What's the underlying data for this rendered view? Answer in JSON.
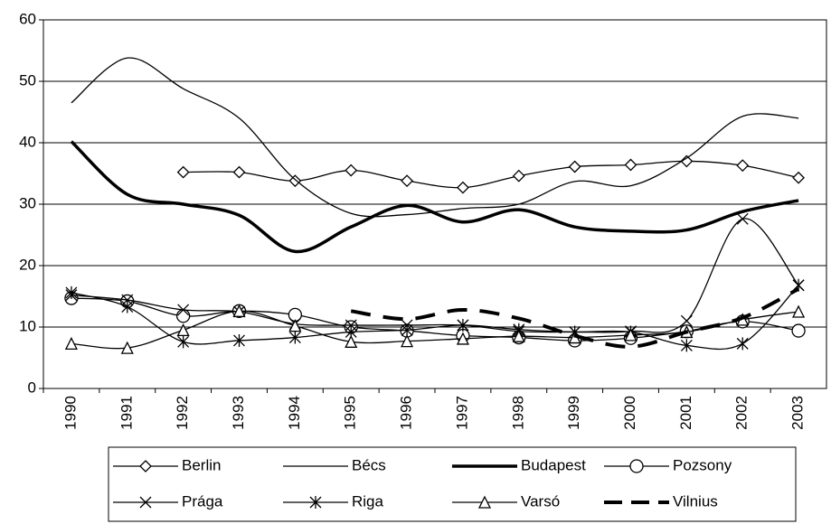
{
  "chart_data": {
    "type": "line",
    "categories": [
      "1990",
      "1991",
      "1992",
      "1993",
      "1994",
      "1995",
      "1996",
      "1997",
      "1998",
      "1999",
      "2000",
      "2001",
      "2002",
      "2003"
    ],
    "ylim": [
      0,
      60
    ],
    "yticks": [
      0,
      10,
      20,
      30,
      40,
      50,
      60
    ],
    "grid": true,
    "series": [
      {
        "name": "Berlin",
        "color": "#000",
        "marker": "diamond",
        "line_width": 1.3,
        "values": [
          null,
          null,
          35.2,
          35.2,
          33.8,
          35.5,
          33.8,
          32.7,
          34.6,
          36.1,
          36.4,
          37,
          36.3,
          34.3
        ]
      },
      {
        "name": "Bécs",
        "color": "#000",
        "marker": "none",
        "line_width": 1.3,
        "values": [
          46.5,
          53.8,
          48.8,
          44,
          34,
          28.5,
          28.3,
          29.3,
          30,
          33.7,
          33,
          37.5,
          44.3,
          44
        ]
      },
      {
        "name": "Budapest",
        "color": "#000",
        "marker": "none",
        "line_width": 3.5,
        "values": [
          40.2,
          31.6,
          30,
          28.2,
          22.3,
          26.3,
          29.8,
          27.1,
          29.1,
          26.3,
          25.6,
          25.8,
          28.8,
          30.6
        ]
      },
      {
        "name": "Pozsony",
        "color": "#000",
        "marker": "circle",
        "line_width": 1.3,
        "values": [
          14.7,
          14.2,
          11.8,
          12.6,
          12,
          10,
          9.4,
          8.6,
          8.3,
          7.8,
          8.2,
          9.3,
          10.9,
          9.4
        ]
      },
      {
        "name": "Prága",
        "color": "#000",
        "marker": "x",
        "line_width": 1.3,
        "values": [
          15.2,
          14.4,
          12.8,
          12.5,
          10.5,
          10.3,
          10.3,
          10.3,
          9.3,
          9.2,
          9.3,
          11,
          27.6,
          16.8
        ]
      },
      {
        "name": "Riga",
        "color": "#000",
        "marker": "asterisk",
        "line_width": 1.3,
        "values": [
          15.6,
          13.3,
          7.6,
          7.8,
          8.3,
          9.2,
          9.5,
          10.3,
          9.6,
          9.2,
          9.2,
          7,
          7.3,
          16.8
        ]
      },
      {
        "name": "Varsó",
        "color": "#000",
        "marker": "triangle",
        "line_width": 1.3,
        "values": [
          7.3,
          6.6,
          9.5,
          12.6,
          10.2,
          7.6,
          7.7,
          8.1,
          8.5,
          8.3,
          8.7,
          9.2,
          11.2,
          12.5
        ]
      },
      {
        "name": "Vilnius",
        "color": "#000",
        "marker": "none",
        "line_width": 4,
        "dashed": true,
        "values": [
          null,
          null,
          null,
          null,
          null,
          12.6,
          11.3,
          12.8,
          11.4,
          8.6,
          6.8,
          9.2,
          11.5,
          16.2
        ]
      }
    ]
  }
}
